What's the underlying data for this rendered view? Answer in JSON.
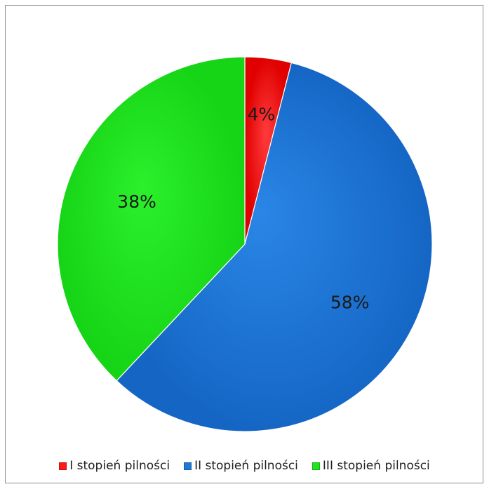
{
  "chart_data": {
    "type": "pie",
    "title": "",
    "categories": [
      "I stopień pilności",
      "II stopień pilności",
      "III stopień pilności"
    ],
    "values": [
      4,
      58,
      38
    ],
    "labels": [
      "4%",
      "58%",
      "38%"
    ],
    "colors": [
      "#ff1a1a",
      "#1f78d8",
      "#1ee61e"
    ],
    "start_angle_deg": 0,
    "direction": "clockwise",
    "legend_position": "bottom"
  },
  "legend": {
    "items": [
      {
        "label": "I stopień pilności",
        "color": "#ff1a1a"
      },
      {
        "label": "II stopień pilności",
        "color": "#1f78d8"
      },
      {
        "label": "III stopień pilności",
        "color": "#1ee61e"
      }
    ]
  }
}
